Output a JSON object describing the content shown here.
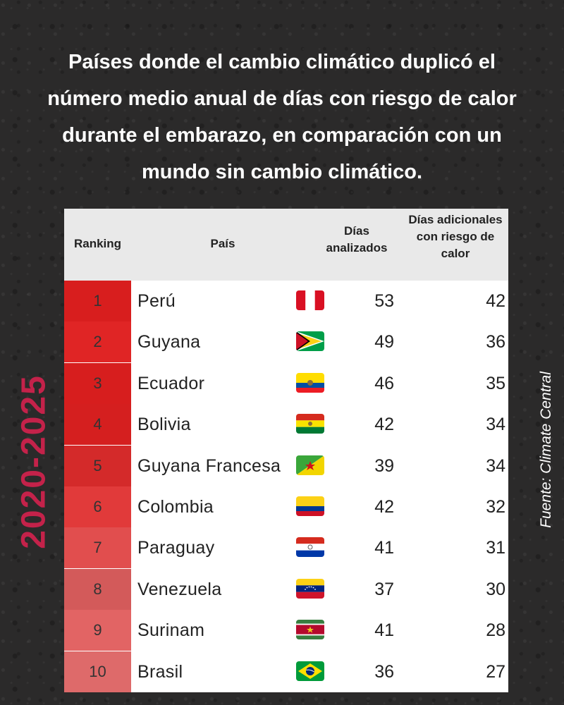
{
  "title": "Países donde el cambio climático duplicó el número medio anual de días con riesgo de calor durante el embarazo, en comparación con un mundo sin cambio climático.",
  "period_label": "2020-2025",
  "source": "Fuente: Climate Central",
  "colors": {
    "background": "#2b2a2a",
    "period": "#c4224a",
    "header_bg": "#e9e9e9"
  },
  "chart_data": {
    "type": "table",
    "columns": [
      "Ranking",
      "País",
      "Días analizados",
      "Días adicionales con riesgo de calor"
    ],
    "rows": [
      {
        "rank": "1",
        "country": "Perú",
        "flag": "peru-flag-icon",
        "days": "53",
        "extra": "42",
        "rank_color": "#d81e1e"
      },
      {
        "rank": "2",
        "country": "Guyana",
        "flag": "guyana-flag-icon",
        "days": "49",
        "extra": "36",
        "rank_color": "#e02525"
      },
      {
        "rank": "3",
        "country": "Ecuador",
        "flag": "ecuador-flag-icon",
        "days": "46",
        "extra": "35",
        "rank_color": "#d71e1e"
      },
      {
        "rank": "4",
        "country": "Bolivia",
        "flag": "bolivia-flag-icon",
        "days": "42",
        "extra": "34",
        "rank_color": "#d51f1f"
      },
      {
        "rank": "5",
        "country": "Guyana Francesa",
        "flag": "french-guiana-flag-icon",
        "days": "39",
        "extra": "34",
        "rank_color": "#d42a2a"
      },
      {
        "rank": "6",
        "country": "Colombia",
        "flag": "colombia-flag-icon",
        "days": "42",
        "extra": "32",
        "rank_color": "#e13a3a"
      },
      {
        "rank": "7",
        "country": "Paraguay",
        "flag": "paraguay-flag-icon",
        "days": "41",
        "extra": "31",
        "rank_color": "#e14e4e"
      },
      {
        "rank": "8",
        "country": "Venezuela",
        "flag": "venezuela-flag-icon",
        "days": "37",
        "extra": "30",
        "rank_color": "#d35a5a"
      },
      {
        "rank": "9",
        "country": "Surinam",
        "flag": "suriname-flag-icon",
        "days": "41",
        "extra": "28",
        "rank_color": "#e26464"
      },
      {
        "rank": "10",
        "country": "Brasil",
        "flag": "brazil-flag-icon",
        "days": "36",
        "extra": "27",
        "rank_color": "#de6a6a"
      }
    ]
  }
}
